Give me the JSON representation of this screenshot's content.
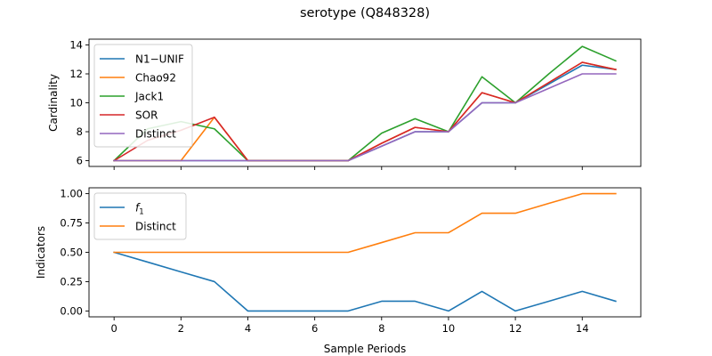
{
  "title": "serotype (Q848328)",
  "xlabel": "Sample Periods",
  "chart_data": [
    {
      "type": "line",
      "ylabel": "Cardinality",
      "x": [
        0,
        1,
        2,
        3,
        4,
        5,
        6,
        7,
        8,
        9,
        10,
        11,
        12,
        13,
        14,
        15
      ],
      "xlim": [
        -0.75,
        15.75
      ],
      "ylim": [
        5.6,
        14.4
      ],
      "xticks": [
        0,
        2,
        4,
        6,
        8,
        10,
        12,
        14
      ],
      "yticks": [
        6,
        8,
        10,
        12,
        14
      ],
      "xticklabels_visible": false,
      "legend_location": "upper-left",
      "series": [
        {
          "name": "N1−UNIF",
          "color": "#1f77b4",
          "values": [
            6,
            6,
            6,
            6,
            6,
            6,
            6,
            6,
            7,
            8,
            8,
            10,
            10,
            11.3,
            12.6,
            12.3
          ]
        },
        {
          "name": "Chao92",
          "color": "#ff7f0e",
          "values": [
            6,
            6,
            6,
            9,
            6,
            6,
            6,
            6,
            7.2,
            8.3,
            8,
            10.7,
            10,
            11.4,
            12.8,
            12.3
          ]
        },
        {
          "name": "Jack1",
          "color": "#2ca02c",
          "values": [
            6,
            8.2,
            8.7,
            8.2,
            6,
            6,
            6,
            6,
            7.9,
            8.9,
            8,
            11.8,
            10,
            12,
            13.9,
            12.9
          ]
        },
        {
          "name": "SOR",
          "color": "#d62728",
          "values": [
            6,
            7.4,
            8.1,
            9,
            6,
            6,
            6,
            6,
            7.2,
            8.3,
            8,
            10.7,
            10,
            11.4,
            12.8,
            12.3
          ]
        },
        {
          "name": "Distinct",
          "color": "#9467bd",
          "values": [
            6,
            6,
            6,
            6,
            6,
            6,
            6,
            6,
            7,
            8,
            8,
            10,
            10,
            11,
            12,
            12
          ]
        }
      ]
    },
    {
      "type": "line",
      "ylabel": "Indicators",
      "x": [
        0,
        1,
        2,
        3,
        4,
        5,
        6,
        7,
        8,
        9,
        10,
        11,
        12,
        13,
        14,
        15
      ],
      "xlim": [
        -0.75,
        15.75
      ],
      "ylim": [
        -0.05,
        1.05
      ],
      "xticks": [
        0,
        2,
        4,
        6,
        8,
        10,
        12,
        14
      ],
      "xticklabels": [
        "0",
        "2",
        "4",
        "6",
        "8",
        "10",
        "12",
        "14"
      ],
      "yticks": [
        0.0,
        0.25,
        0.5,
        0.75,
        1.0
      ],
      "yticklabels": [
        "0.00",
        "0.25",
        "0.50",
        "0.75",
        "1.00"
      ],
      "legend_location": "upper-left",
      "series": [
        {
          "name": "f1",
          "name_main": "f",
          "name_sub": "1",
          "color": "#1f77b4",
          "values": [
            0.5,
            0.417,
            0.333,
            0.25,
            0,
            0,
            0,
            0,
            0.083,
            0.083,
            0,
            0.167,
            0,
            0.083,
            0.167,
            0.083
          ]
        },
        {
          "name": "Distinct",
          "color": "#ff7f0e",
          "values": [
            0.5,
            0.5,
            0.5,
            0.5,
            0.5,
            0.5,
            0.5,
            0.5,
            0.583,
            0.667,
            0.667,
            0.833,
            0.833,
            0.917,
            1.0,
            1.0
          ]
        }
      ]
    }
  ]
}
